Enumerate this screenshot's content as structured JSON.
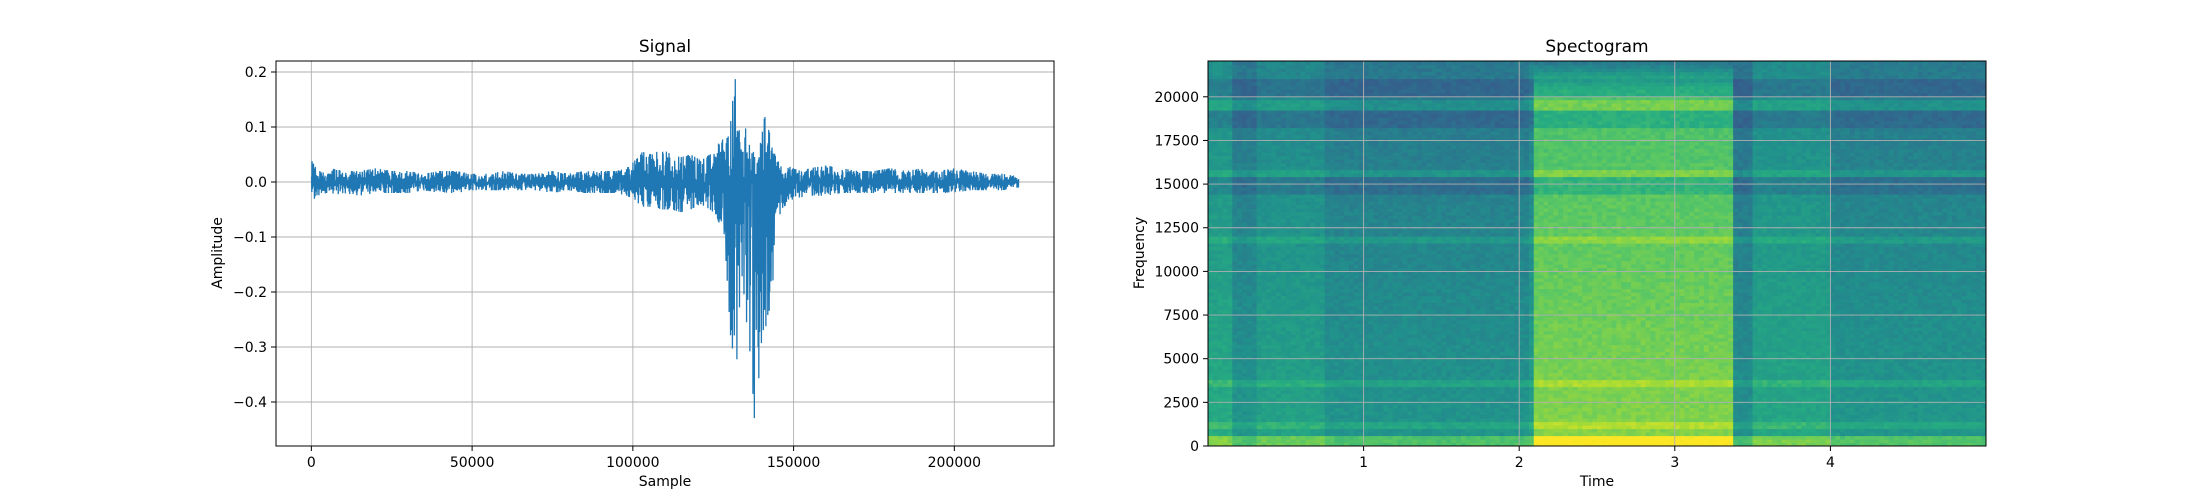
{
  "chart_data": [
    {
      "type": "line",
      "title": "Signal",
      "xlabel": "Sample",
      "ylabel": "Amplitude",
      "xlim": [
        -11000,
        231000
      ],
      "ylim": [
        -0.48,
        0.22
      ],
      "xticks": [
        0,
        50000,
        100000,
        150000,
        200000
      ],
      "xtick_labels": [
        "0",
        "50000",
        "100000",
        "150000",
        "200000"
      ],
      "yticks": [
        0.2,
        0.1,
        0.0,
        -0.1,
        -0.2,
        -0.3,
        -0.4
      ],
      "ytick_labels": [
        "0.2",
        "0.1",
        "0.0",
        "−0.1",
        "−0.2",
        "−0.3",
        "−0.4"
      ],
      "grid": true,
      "line_color": "#1f77b4",
      "series": [
        {
          "x": [
            0,
            1000,
            2000,
            4000,
            6000,
            10000,
            15000,
            20000,
            25000,
            30000,
            35000,
            40000,
            45000,
            50000,
            55000,
            60000,
            65000,
            70000,
            75000,
            80000,
            85000,
            90000,
            95000,
            98000,
            100000,
            103000,
            106000,
            109000,
            112000,
            115000,
            118000,
            121000,
            124000,
            126000,
            128000,
            130000,
            131000,
            132000,
            133000,
            134000,
            135000,
            136000,
            137000,
            138000,
            139000,
            140000,
            141000,
            142000,
            143000,
            144000,
            145000,
            146000,
            148000,
            150000,
            155000,
            160000,
            165000,
            170000,
            175000,
            180000,
            185000,
            190000,
            195000,
            200000,
            205000,
            210000,
            215000,
            220000
          ],
          "max": [
            0.04,
            0.03,
            0.02,
            0.02,
            0.025,
            0.02,
            0.02,
            0.025,
            0.02,
            0.02,
            0.015,
            0.02,
            0.02,
            0.015,
            0.015,
            0.02,
            0.015,
            0.015,
            0.02,
            0.015,
            0.02,
            0.02,
            0.02,
            0.025,
            0.035,
            0.055,
            0.05,
            0.06,
            0.05,
            0.045,
            0.05,
            0.04,
            0.05,
            0.06,
            0.09,
            0.13,
            0.17,
            0.19,
            0.12,
            0.07,
            0.1,
            0.07,
            0.06,
            0.05,
            0.06,
            0.08,
            0.12,
            0.1,
            0.08,
            0.06,
            0.04,
            0.03,
            0.03,
            0.025,
            0.025,
            0.03,
            0.025,
            0.02,
            0.02,
            0.025,
            0.02,
            0.025,
            0.02,
            0.025,
            0.02,
            0.015,
            0.015,
            0.01
          ],
          "min": [
            -0.04,
            -0.03,
            -0.025,
            -0.02,
            -0.025,
            -0.02,
            -0.025,
            -0.02,
            -0.02,
            -0.02,
            -0.015,
            -0.02,
            -0.02,
            -0.015,
            -0.015,
            -0.015,
            -0.015,
            -0.015,
            -0.02,
            -0.015,
            -0.02,
            -0.02,
            -0.02,
            -0.025,
            -0.03,
            -0.045,
            -0.045,
            -0.05,
            -0.05,
            -0.055,
            -0.05,
            -0.04,
            -0.05,
            -0.06,
            -0.1,
            -0.24,
            -0.34,
            -0.37,
            -0.24,
            -0.17,
            -0.24,
            -0.28,
            -0.35,
            -0.45,
            -0.37,
            -0.3,
            -0.27,
            -0.25,
            -0.22,
            -0.15,
            -0.09,
            -0.05,
            -0.04,
            -0.03,
            -0.025,
            -0.025,
            -0.02,
            -0.02,
            -0.02,
            -0.02,
            -0.02,
            -0.02,
            -0.02,
            -0.02,
            -0.015,
            -0.015,
            -0.015,
            -0.01
          ]
        }
      ]
    },
    {
      "type": "heatmap",
      "title": "Spectogram",
      "xlabel": "Time",
      "ylabel": "Frequency",
      "xlim": [
        0,
        5.0
      ],
      "ylim": [
        0,
        22050
      ],
      "xticks": [
        1,
        2,
        3,
        4
      ],
      "xtick_labels": [
        "1",
        "2",
        "3",
        "4"
      ],
      "yticks": [
        0,
        2500,
        5000,
        7500,
        10000,
        12500,
        15000,
        17500,
        20000
      ],
      "ytick_labels": [
        "0",
        "2500",
        "5000",
        "7500",
        "10000",
        "12500",
        "15000",
        "17500",
        "20000"
      ],
      "grid": true,
      "colormap": "viridis",
      "energy_segments": [
        {
          "t0": 0.0,
          "t1": 0.15,
          "level": 0.62
        },
        {
          "t0": 0.15,
          "t1": 0.3,
          "level": 0.52
        },
        {
          "t0": 0.3,
          "t1": 0.75,
          "level": 0.58
        },
        {
          "t0": 0.75,
          "t1": 2.05,
          "level": 0.52
        },
        {
          "t0": 2.05,
          "t1": 2.1,
          "level": 0.56
        },
        {
          "t0": 2.1,
          "t1": 3.38,
          "level": 0.82
        },
        {
          "t0": 3.38,
          "t1": 3.5,
          "level": 0.5
        },
        {
          "t0": 3.5,
          "t1": 4.0,
          "level": 0.6
        },
        {
          "t0": 4.0,
          "t1": 5.0,
          "level": 0.53
        }
      ],
      "bright_bands_hz": [
        1200,
        3600,
        11800,
        15600,
        19600
      ],
      "dark_bands_hz": [
        15000,
        18800,
        20500
      ]
    }
  ]
}
